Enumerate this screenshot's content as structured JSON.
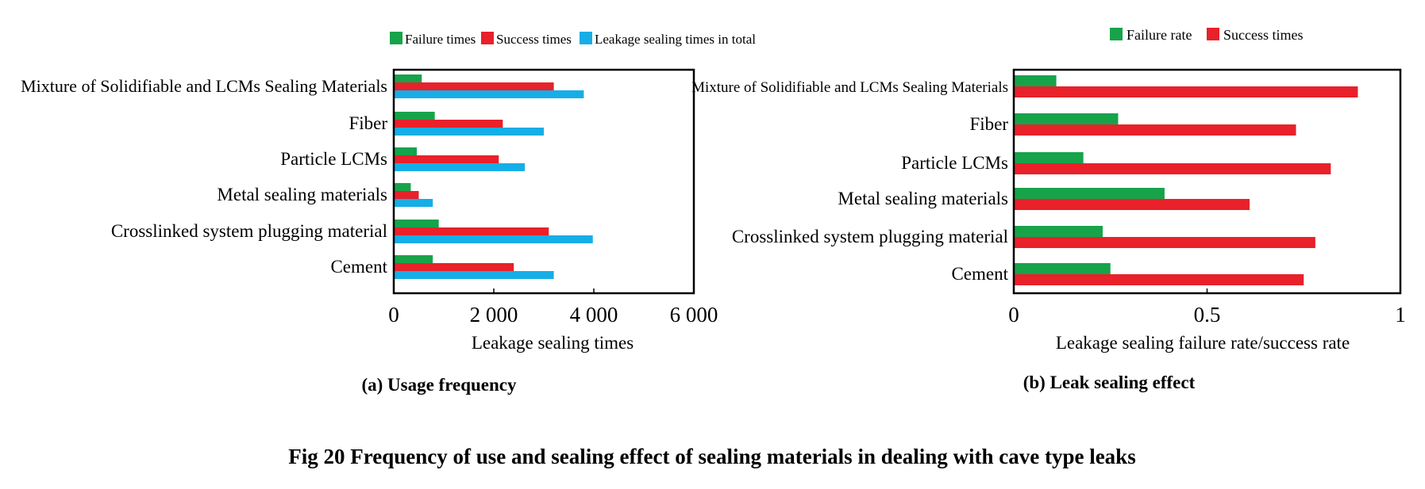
{
  "figure": {
    "caption": "Fig 20 Frequency of use and sealing effect of sealing materials in dealing with cave type leaks"
  },
  "colors": {
    "failure": "#17a34a",
    "success": "#e8212a",
    "total": "#16aee6"
  },
  "chart_data": [
    {
      "type": "bar",
      "orientation": "horizontal",
      "subtitle": "(a) Usage frequency",
      "xlabel": "Leakage sealing times",
      "ylabel": "",
      "xlim": [
        0,
        6000
      ],
      "xticks": [
        0,
        2000,
        4000,
        6000
      ],
      "xtick_labels": [
        "0",
        "2 000",
        "4 000",
        "6 000"
      ],
      "categories": [
        "Mixture of Solidifiable and LCMs Sealing Materials",
        "Fiber",
        "Particle LCMs",
        "Metal sealing materials",
        "Crosslinked system plugging material",
        "Cement"
      ],
      "series": [
        {
          "name": "Failure times",
          "color": "#17a34a",
          "values": [
            560,
            820,
            460,
            340,
            900,
            780
          ]
        },
        {
          "name": "Success times",
          "color": "#e8212a",
          "values": [
            3200,
            2180,
            2100,
            500,
            3100,
            2400
          ]
        },
        {
          "name": "Leakage sealing times in total",
          "color": "#16aee6",
          "values": [
            3800,
            3000,
            2620,
            780,
            3980,
            3200
          ]
        }
      ],
      "legend": "top",
      "grid": false
    },
    {
      "type": "bar",
      "orientation": "horizontal",
      "subtitle": "(b) Leak sealing effect",
      "xlabel": "Leakage sealing failure rate/success rate",
      "ylabel": "",
      "xlim": [
        0,
        1
      ],
      "xticks": [
        0,
        0.5,
        1
      ],
      "xtick_labels": [
        "0",
        "0.5",
        "1"
      ],
      "categories": [
        "Mixture of Solidifiable and LCMs Sealing Materials",
        "Fiber",
        "Particle LCMs",
        "Metal sealing materials",
        "Crosslinked system plugging material",
        "Cement"
      ],
      "series": [
        {
          "name": "Failure rate",
          "color": "#17a34a",
          "values": [
            0.11,
            0.27,
            0.18,
            0.39,
            0.23,
            0.25
          ]
        },
        {
          "name": "Success times",
          "color": "#e8212a",
          "values": [
            0.89,
            0.73,
            0.82,
            0.61,
            0.78,
            0.75
          ]
        }
      ],
      "legend": "top",
      "grid": false
    }
  ]
}
